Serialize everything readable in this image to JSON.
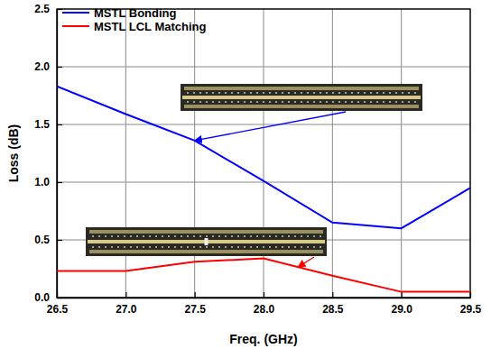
{
  "chart_data": {
    "type": "line",
    "x_label": "Freq. (GHz)",
    "y_label": "Loss (dB)",
    "x": [
      26.5,
      27.0,
      27.5,
      28.0,
      28.5,
      29.0,
      29.5
    ],
    "series": [
      {
        "name": "MSTL Bonding",
        "color": "#0000ff",
        "values": [
          1.83,
          1.59,
          1.36,
          1.01,
          0.65,
          0.6,
          0.95
        ]
      },
      {
        "name": "MSTL LCL Matching",
        "color": "#ff0000",
        "values": [
          0.23,
          0.23,
          0.31,
          0.34,
          0.19,
          0.05,
          0.05
        ]
      }
    ],
    "xlim": [
      26.5,
      29.5
    ],
    "xticks": [
      26.5,
      {
        "value": 27,
        "label": "27.0"
      },
      27.5,
      {
        "value": 28,
        "label": "28.0"
      },
      28.5,
      {
        "value": 29,
        "label": "29.0"
      },
      29.5
    ],
    "ylim": [
      0,
      2.5
    ],
    "yticks": [
      {
        "value": 0,
        "label": "0.0"
      },
      0.5,
      {
        "value": 1,
        "label": "1.0"
      },
      1.5,
      {
        "value": 2,
        "label": "2.0"
      },
      2.5
    ],
    "grid": true,
    "legend": "upper left"
  }
}
